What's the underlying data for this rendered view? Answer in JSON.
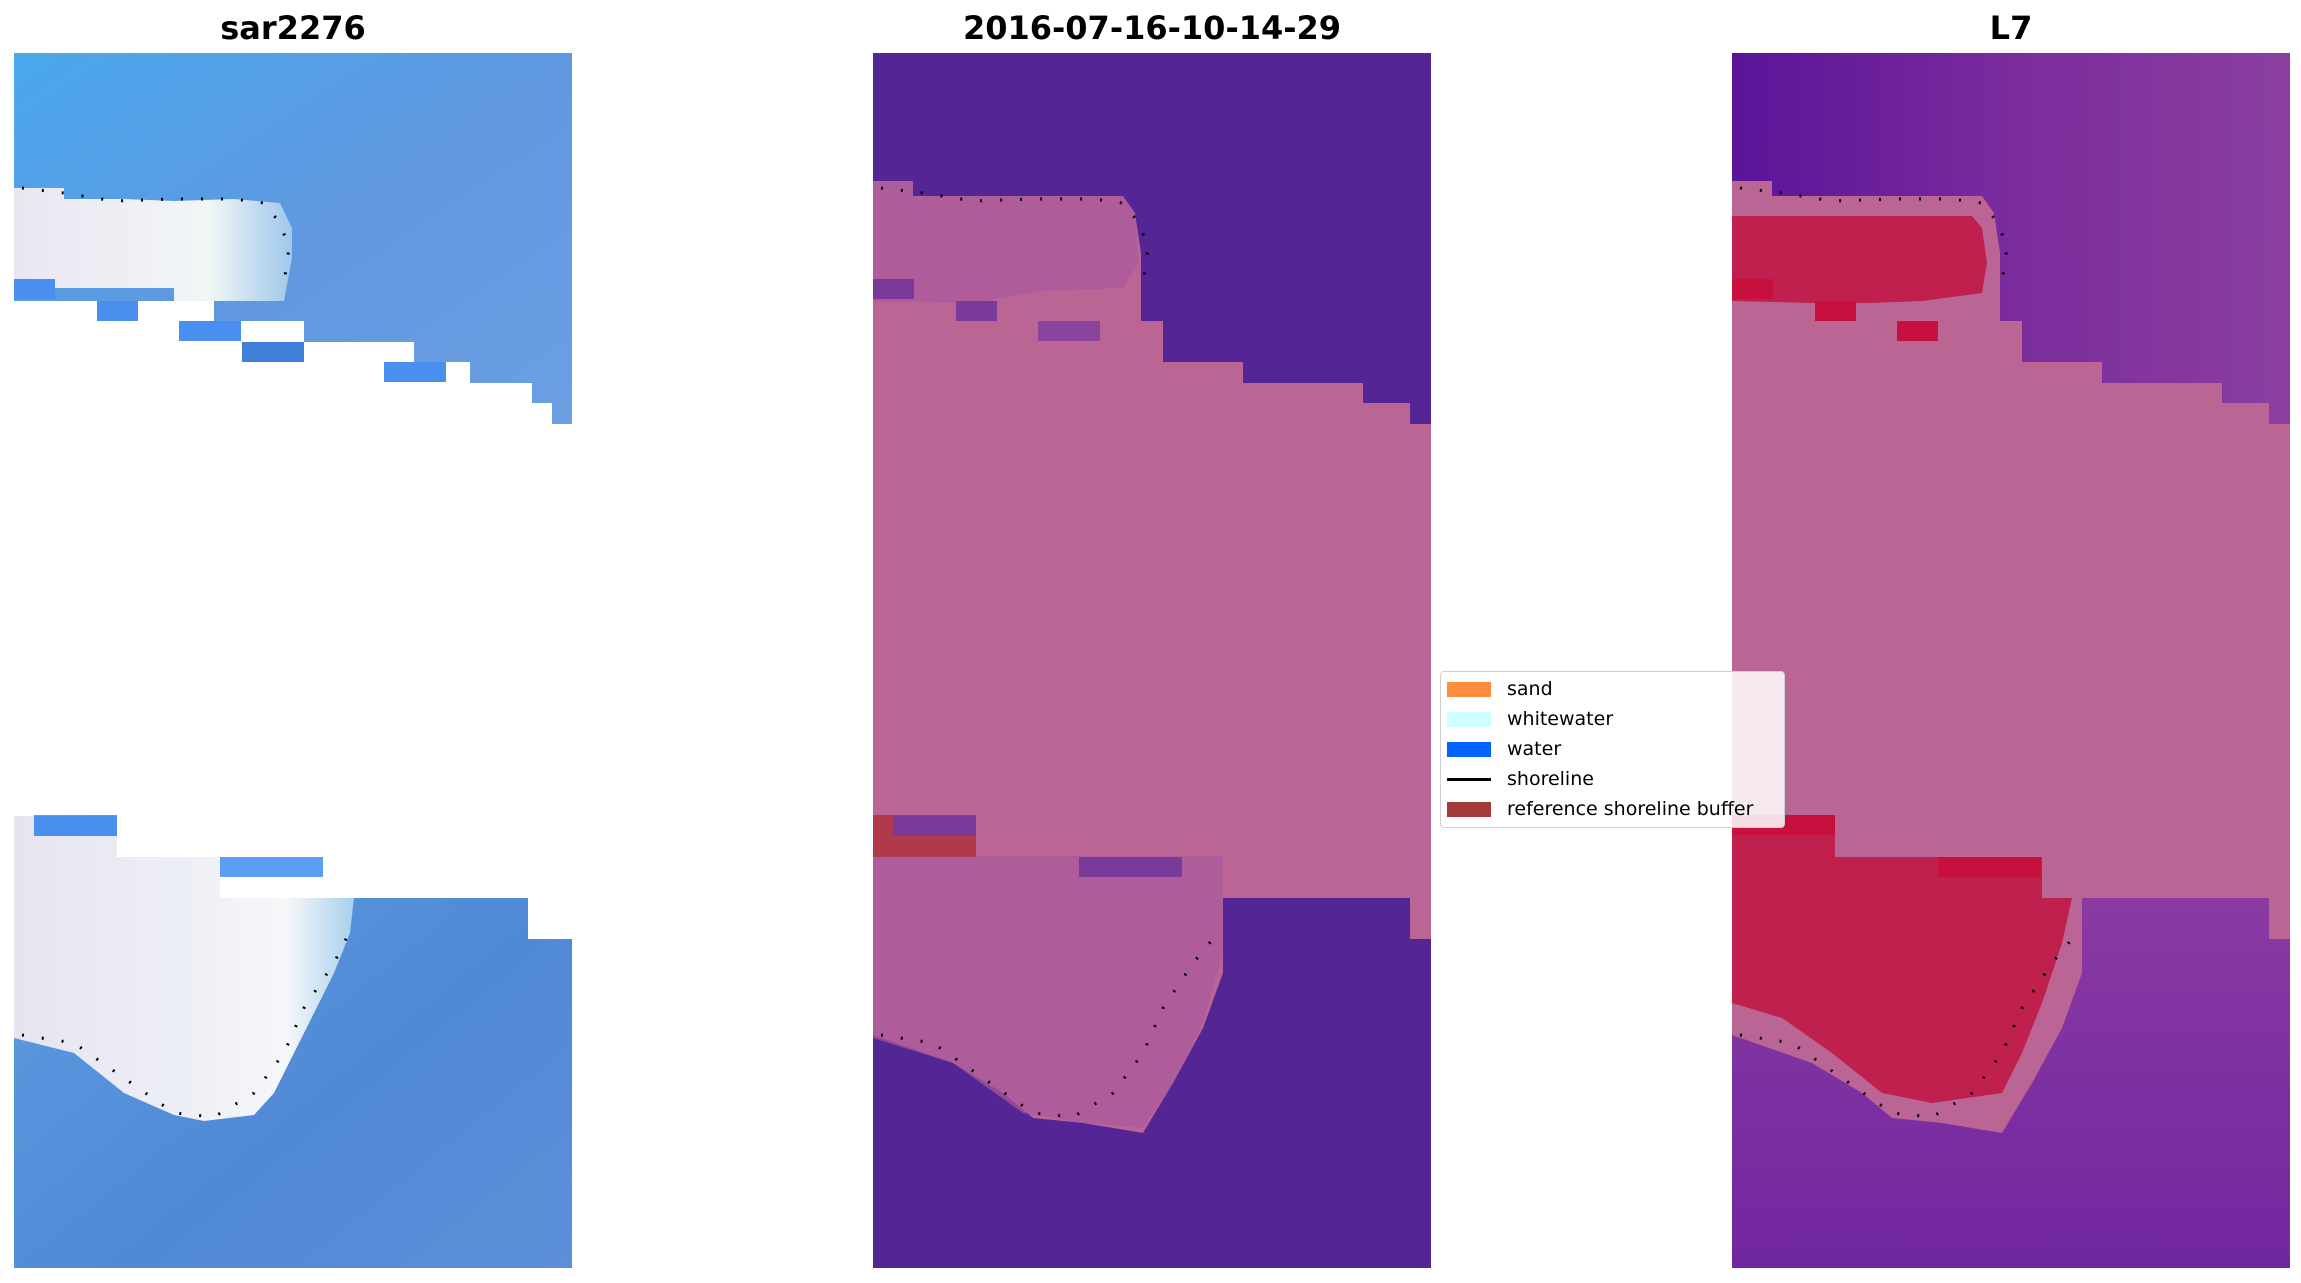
{
  "titles": {
    "left": "sar2276",
    "middle": "2016-07-16-10-14-29",
    "right": "L7"
  },
  "legend": {
    "items": [
      {
        "label": "sand",
        "color": "#ff8c40",
        "kind": "patch"
      },
      {
        "label": "whitewater",
        "color": "#ccffff",
        "kind": "patch"
      },
      {
        "label": "water",
        "color": "#0063ff",
        "kind": "patch"
      },
      {
        "label": "shoreline",
        "color": "#000000",
        "kind": "line"
      },
      {
        "label": "reference shoreline buffer",
        "color": "#a33a3a",
        "kind": "patch"
      }
    ]
  },
  "colors": {
    "background": "#ffffff",
    "sar_water": "#5b8fd6",
    "sar_water_light": "#4aa9f2",
    "sar_whitewater": "#e3e2f0",
    "sar_water_patch": "#4a8ff0",
    "mid_water": "#532595",
    "mid_buffer": "#bb6595",
    "mid_mixed": "#a85a9a",
    "mid_red": "#b03a4a",
    "l7_water": "#7a2c9c",
    "l7_buffer": "#bb6595",
    "l7_sand": "#c21a4a",
    "l7_dark": "#5a1499",
    "shoreline": "#000000"
  }
}
